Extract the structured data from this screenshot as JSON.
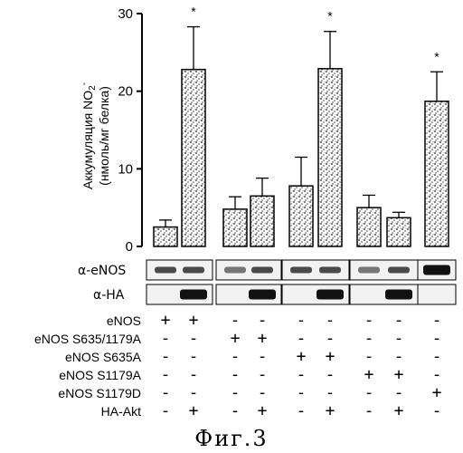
{
  "chart_data": {
    "type": "bar",
    "ylabel_line1": "Аккумуляция NO",
    "ylabel_sub": "2",
    "ylabel_sup": "-",
    "ylabel_line2": "(нмоль/мг белка)",
    "ylim": [
      0,
      30
    ],
    "yticks": [
      0,
      10,
      20,
      30
    ],
    "grid": false,
    "values": [
      2.5,
      22.8,
      4.8,
      6.5,
      7.8,
      22.9,
      5.0,
      3.7,
      18.7
    ],
    "errors": [
      0.9,
      5.5,
      1.6,
      2.3,
      3.7,
      4.8,
      1.6,
      0.7,
      3.8
    ],
    "significant": [
      false,
      true,
      false,
      false,
      false,
      true,
      false,
      false,
      true
    ],
    "significance_mark": "*"
  },
  "blots": [
    {
      "label": "α-eNOS",
      "lanes": [
        2,
        2,
        1,
        2,
        2,
        2,
        1,
        2,
        3
      ]
    },
    {
      "label": "α-HA",
      "lanes": [
        0,
        3,
        0,
        3,
        0,
        3,
        0,
        3,
        0
      ]
    }
  ],
  "conditions": {
    "rows": [
      {
        "label": "eNOS",
        "marks": [
          "+",
          "+",
          "-",
          "-",
          "-",
          "-",
          "-",
          "-",
          "-"
        ]
      },
      {
        "label": "eNOS S635/1179A",
        "marks": [
          "-",
          "-",
          "+",
          "+",
          "-",
          "-",
          "-",
          "-",
          "-"
        ]
      },
      {
        "label": "eNOS S635A",
        "marks": [
          "-",
          "-",
          "-",
          "-",
          "+",
          "+",
          "-",
          "-",
          "-"
        ]
      },
      {
        "label": "eNOS S1179A",
        "marks": [
          "-",
          "-",
          "-",
          "-",
          "-",
          "-",
          "+",
          "+",
          "-"
        ]
      },
      {
        "label": "eNOS S1179D",
        "marks": [
          "-",
          "-",
          "-",
          "-",
          "-",
          "-",
          "-",
          "-",
          "+"
        ]
      },
      {
        "label": "HA-Akt",
        "marks": [
          "-",
          "+",
          "-",
          "+",
          "-",
          "+",
          "-",
          "+",
          "-"
        ]
      }
    ]
  },
  "caption": "Фиг.3",
  "colors": {
    "ink": "#000000",
    "bar_fill": "#bdbdbd",
    "band": "#111111"
  }
}
